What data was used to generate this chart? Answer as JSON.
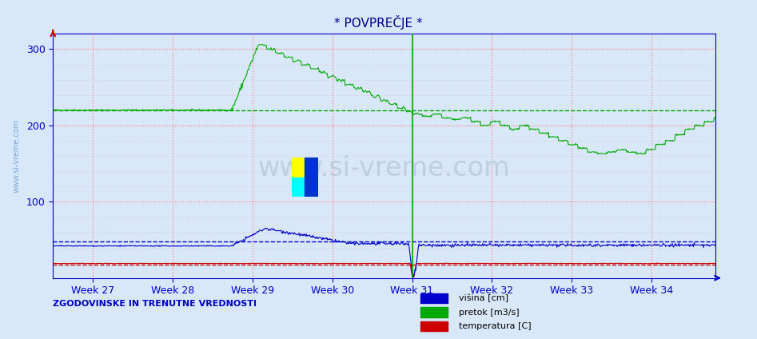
{
  "title": "* POVPREČJE *",
  "background_color": "#d8e8f8",
  "plot_bg_color": "#d8e8f8",
  "axis_color": "#0000cc",
  "ylim": [
    0,
    320
  ],
  "yticks": [
    100,
    200,
    300
  ],
  "title_color": "#000088",
  "legend_label_visina": "višina [cm]",
  "legend_label_pretok": "pretok [m3/s]",
  "legend_label_temperatura": "temperatura [C]",
  "legend_color_visina": "#0000cc",
  "legend_color_pretok": "#00aa00",
  "legend_color_temperatura": "#cc0000",
  "bottom_text": "ZGODOVINSKE IN TRENUTNE VREDNOSTI",
  "bottom_text_color": "#0000cc",
  "watermark_text": "www.si-vreme.com",
  "n_points": 1000,
  "pretok_avg_line": 220,
  "visina_avg_line": 48,
  "temperatura_avg_line": 18,
  "visina_color": "#0000cc",
  "pretok_color": "#00aa00",
  "temperatura_color": "#cc0000",
  "week_start": 26.5,
  "week_end": 34.8,
  "weeks": [
    27,
    28,
    29,
    30,
    31,
    32,
    33,
    34
  ]
}
